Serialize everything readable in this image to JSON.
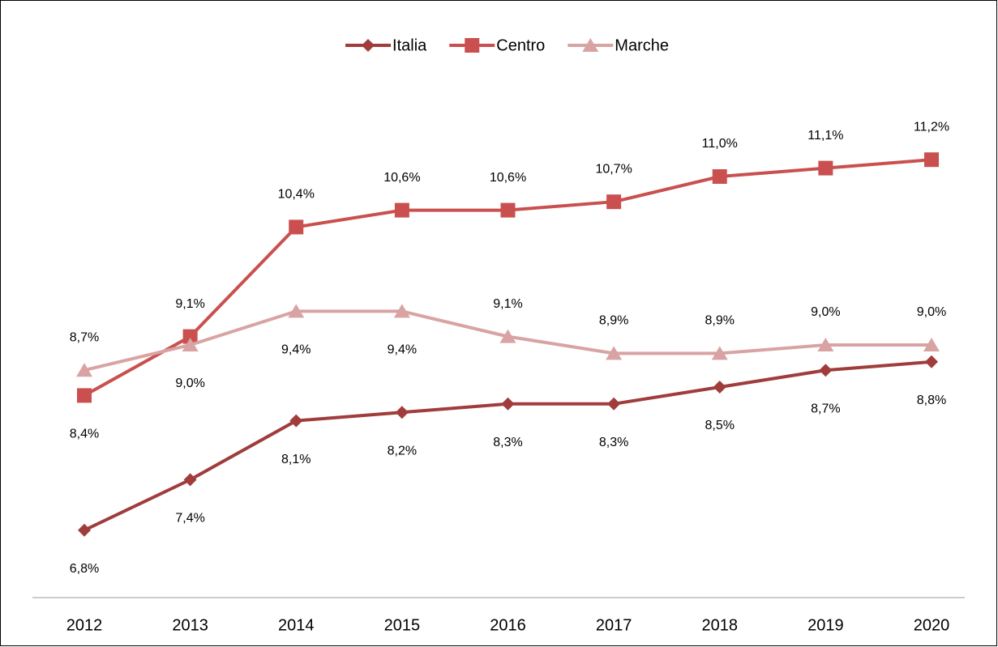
{
  "chart_data": {
    "type": "line",
    "categories": [
      "2012",
      "2013",
      "2014",
      "2015",
      "2016",
      "2017",
      "2018",
      "2019",
      "2020"
    ],
    "ylim": [
      6,
      12
    ],
    "series": [
      {
        "name": "Italia",
        "color": "#a03c3c",
        "marker": "diamond",
        "values": [
          6.8,
          7.4,
          8.1,
          8.2,
          8.3,
          8.3,
          8.5,
          8.7,
          8.8
        ],
        "value_labels": [
          "6,8%",
          "7,4%",
          "8,1%",
          "8,2%",
          "8,3%",
          "8,3%",
          "8,5%",
          "8,7%",
          "8,8%"
        ]
      },
      {
        "name": "Centro",
        "color": "#c9504f",
        "marker": "square",
        "values": [
          8.4,
          9.1,
          10.4,
          10.6,
          10.6,
          10.7,
          11.0,
          11.1,
          11.2
        ],
        "value_labels": [
          "8,4%",
          "9,1%",
          "10,4%",
          "10,6%",
          "10,6%",
          "10,7%",
          "11,0%",
          "11,1%",
          "11,2%"
        ]
      },
      {
        "name": "Marche",
        "color": "#d9a3a3",
        "marker": "triangle",
        "values": [
          8.7,
          9.0,
          9.4,
          9.4,
          9.1,
          8.9,
          8.9,
          9.0,
          9.0
        ],
        "value_labels": [
          "8,7%",
          "9,0%",
          "9,4%",
          "9,4%",
          "9,1%",
          "8,9%",
          "8,9%",
          "9,0%",
          "9,0%"
        ]
      }
    ]
  }
}
